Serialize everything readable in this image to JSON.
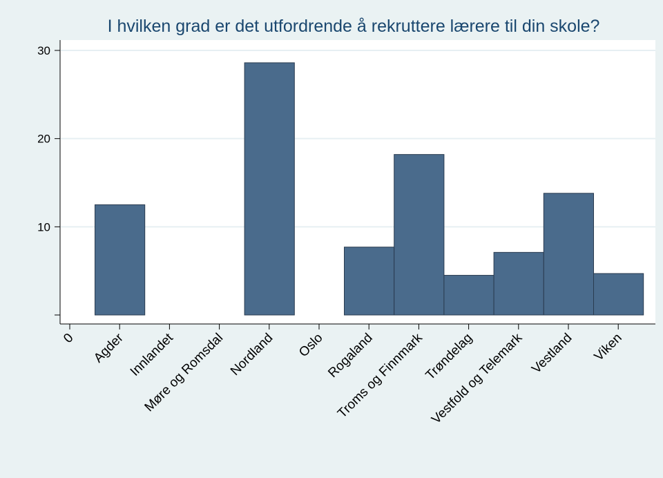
{
  "chart_data": {
    "type": "bar",
    "title": "I hvilken grad er det utfordrende å rekruttere lærere til din skole?",
    "xlabel": "",
    "ylabel": "",
    "x_tick_labels": [
      "0",
      "Agder",
      "Innlandet",
      "Møre og Romsdal",
      "Nordland",
      "Oslo",
      "Rogaland",
      "Troms og Finnmark",
      "Trøndelag",
      "Vestfold og Telemark",
      "Vestland",
      "Viken"
    ],
    "categories": [
      "Agder",
      "Innlandet",
      "Møre og Romsdal",
      "Nordland",
      "Oslo",
      "Rogaland",
      "Troms og Finnmark",
      "Trøndelag",
      "Vestfold og Telemark",
      "Vestland",
      "Viken"
    ],
    "values": [
      12.5,
      0,
      0,
      28.6,
      0,
      7.7,
      18.2,
      4.5,
      7.1,
      13.8,
      4.7
    ],
    "y_ticks": [
      0,
      10,
      20,
      30
    ],
    "y_tick_labels": [
      "",
      "10",
      "20",
      "30"
    ],
    "ylim": [
      0,
      30
    ],
    "grid": true,
    "legend": "none",
    "colors": {
      "bar": "#4a6b8c",
      "bar_edge": "#2a3b4f",
      "plot_bg": "#ffffff",
      "page_bg": "#eaf2f3",
      "grid": "#e6eff3",
      "title": "#1a476f"
    }
  }
}
